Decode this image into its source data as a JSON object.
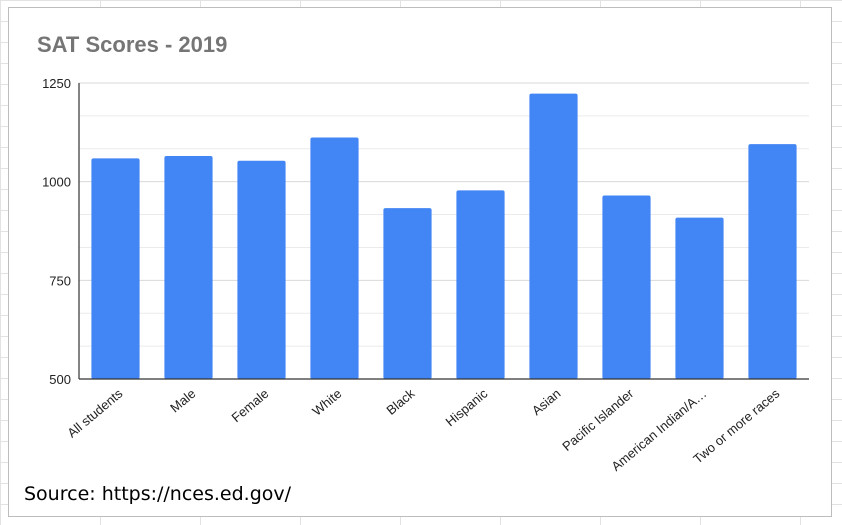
{
  "chart_data": {
    "type": "bar",
    "title": "SAT Scores - 2019",
    "categories": [
      "All students",
      "Male",
      "Female",
      "White",
      "Black",
      "Hispanic",
      "Asian",
      "Pacific Islander",
      "American Indian/A…",
      "Two or more races"
    ],
    "values": [
      1059,
      1065,
      1053,
      1112,
      933,
      978,
      1223,
      965,
      909,
      1095
    ],
    "ylim": [
      500,
      1250
    ],
    "yticks": [
      500,
      750,
      1000,
      1250
    ],
    "minor_gridlines": true,
    "xlabel": "",
    "ylabel": "",
    "bar_color": "#4285f4",
    "grid_color": "#d9d9d9"
  },
  "source": "Source: https://nces.ed.gov/"
}
